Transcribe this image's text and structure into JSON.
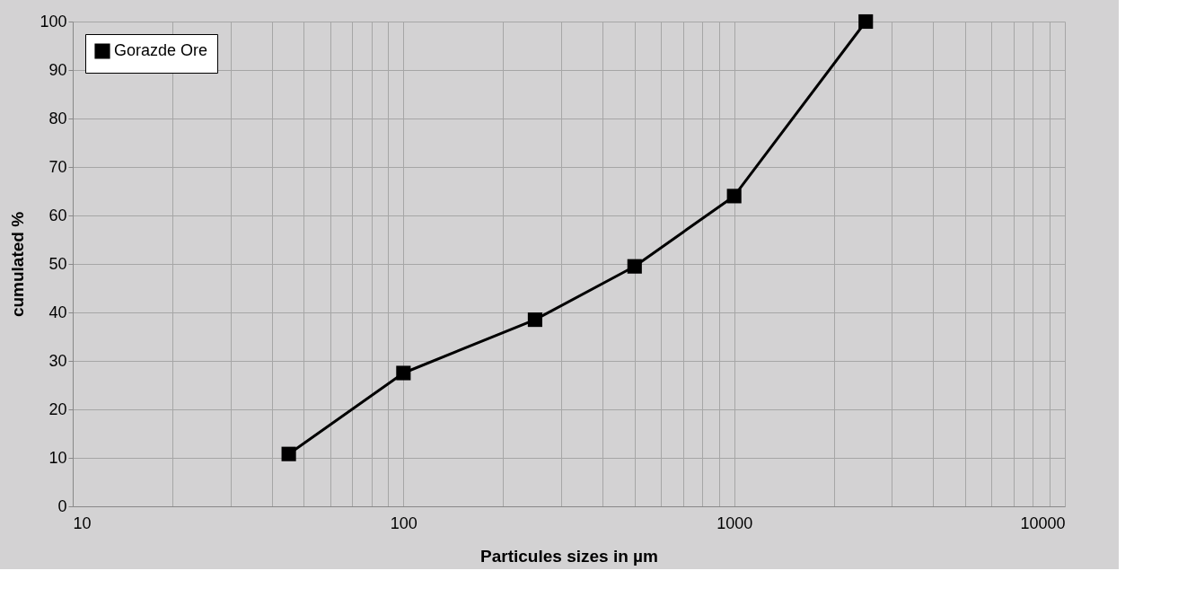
{
  "chart_data": {
    "type": "line",
    "xlabel": "Particules sizes in µm",
    "ylabel": "cumulated %",
    "x": [
      45,
      100,
      250,
      500,
      1000,
      2500
    ],
    "series": [
      {
        "name": "Gorazde Ore",
        "color": "#000000",
        "values": [
          10.8,
          27.5,
          38.5,
          49.5,
          64,
          100
        ]
      }
    ],
    "log": "x",
    "xlim": [
      10,
      10000
    ],
    "ylim": [
      0,
      100
    ],
    "xticks": [
      10,
      {
        "value": 20,
        "label": null
      },
      {
        "value": 30,
        "label": null
      },
      {
        "value": 40,
        "label": null
      },
      {
        "value": 50,
        "label": null
      },
      {
        "value": 60,
        "label": null
      },
      {
        "value": 70,
        "label": null
      },
      {
        "value": 80,
        "label": null
      },
      {
        "value": 90,
        "label": null
      },
      100,
      {
        "value": 200,
        "label": null
      },
      {
        "value": 300,
        "label": null
      },
      {
        "value": 400,
        "label": null
      },
      {
        "value": 500,
        "label": null
      },
      {
        "value": 600,
        "label": null
      },
      {
        "value": 700,
        "label": null
      },
      {
        "value": 800,
        "label": null
      },
      {
        "value": 900,
        "label": null
      },
      1000,
      {
        "value": 2000,
        "label": null
      },
      {
        "value": 3000,
        "label": null
      },
      {
        "value": 4000,
        "label": null
      },
      {
        "value": 5000,
        "label": null
      },
      {
        "value": 6000,
        "label": null
      },
      {
        "value": 7000,
        "label": null
      },
      {
        "value": 8000,
        "label": null
      },
      {
        "value": 9000,
        "label": null
      },
      10000
    ],
    "yticks": [
      0,
      10,
      20,
      30,
      40,
      50,
      60,
      70,
      80,
      90,
      100
    ],
    "grid": true,
    "legend": "top left",
    "marker": "square",
    "line_style": "solid"
  }
}
